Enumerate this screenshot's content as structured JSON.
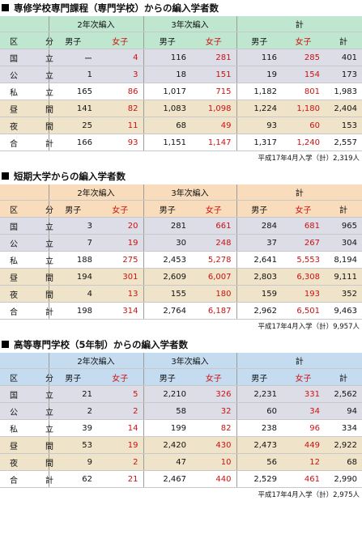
{
  "colors": {
    "s1_header": "#bfe6ce",
    "s2_header": "#f8dcbc",
    "s3_header": "#c5dcf0",
    "red_text": "#cc1111",
    "row_national_public": "#dcdde6",
    "row_night": "#efe4c9"
  },
  "headers": {
    "year2": "2年次編入",
    "year3": "3年次編入",
    "total": "計",
    "category": "区　分",
    "male": "男子",
    "female": "女子"
  },
  "sections": [
    {
      "title": "専修学校専門課程（専門学校）からの編入学者数",
      "rows": [
        {
          "label": "国　立",
          "v": [
            "ー",
            "4",
            "116",
            "281",
            "116",
            "285",
            "401"
          ]
        },
        {
          "label": "公　立",
          "v": [
            "1",
            "3",
            "18",
            "151",
            "19",
            "154",
            "173"
          ]
        },
        {
          "label": "私　立",
          "v": [
            "165",
            "86",
            "1,017",
            "715",
            "1,182",
            "801",
            "1,983"
          ]
        },
        {
          "label": "昼　間",
          "v": [
            "141",
            "82",
            "1,083",
            "1,098",
            "1,224",
            "1,180",
            "2,404"
          ]
        },
        {
          "label": "夜　間",
          "v": [
            "25",
            "11",
            "68",
            "49",
            "93",
            "60",
            "153"
          ]
        },
        {
          "label": "合　計",
          "v": [
            "166",
            "93",
            "1,151",
            "1,147",
            "1,317",
            "1,240",
            "2,557"
          ]
        }
      ],
      "note": "平成17年4月入学（計）2,319人"
    },
    {
      "title": "短期大学からの編入学者数",
      "rows": [
        {
          "label": "国　立",
          "v": [
            "3",
            "20",
            "281",
            "661",
            "284",
            "681",
            "965"
          ]
        },
        {
          "label": "公　立",
          "v": [
            "7",
            "19",
            "30",
            "248",
            "37",
            "267",
            "304"
          ]
        },
        {
          "label": "私　立",
          "v": [
            "188",
            "275",
            "2,453",
            "5,278",
            "2,641",
            "5,553",
            "8,194"
          ]
        },
        {
          "label": "昼　間",
          "v": [
            "194",
            "301",
            "2,609",
            "6,007",
            "2,803",
            "6,308",
            "9,111"
          ]
        },
        {
          "label": "夜　間",
          "v": [
            "4",
            "13",
            "155",
            "180",
            "159",
            "193",
            "352"
          ]
        },
        {
          "label": "合　計",
          "v": [
            "198",
            "314",
            "2,764",
            "6,187",
            "2,962",
            "6,501",
            "9,463"
          ]
        }
      ],
      "note": "平成17年4月入学（計）9,957人"
    },
    {
      "title": "高等専門学校（5年制）からの編入学者数",
      "rows": [
        {
          "label": "国　立",
          "v": [
            "21",
            "5",
            "2,210",
            "326",
            "2,231",
            "331",
            "2,562"
          ]
        },
        {
          "label": "公　立",
          "v": [
            "2",
            "2",
            "58",
            "32",
            "60",
            "34",
            "94"
          ]
        },
        {
          "label": "私　立",
          "v": [
            "39",
            "14",
            "199",
            "82",
            "238",
            "96",
            "334"
          ]
        },
        {
          "label": "昼　間",
          "v": [
            "53",
            "19",
            "2,420",
            "430",
            "2,473",
            "449",
            "2,922"
          ]
        },
        {
          "label": "夜　間",
          "v": [
            "9",
            "2",
            "47",
            "10",
            "56",
            "12",
            "68"
          ]
        },
        {
          "label": "合　計",
          "v": [
            "62",
            "21",
            "2,467",
            "440",
            "2,529",
            "461",
            "2,990"
          ]
        }
      ],
      "note": "平成17年4月入学（計）2,975人"
    }
  ]
}
